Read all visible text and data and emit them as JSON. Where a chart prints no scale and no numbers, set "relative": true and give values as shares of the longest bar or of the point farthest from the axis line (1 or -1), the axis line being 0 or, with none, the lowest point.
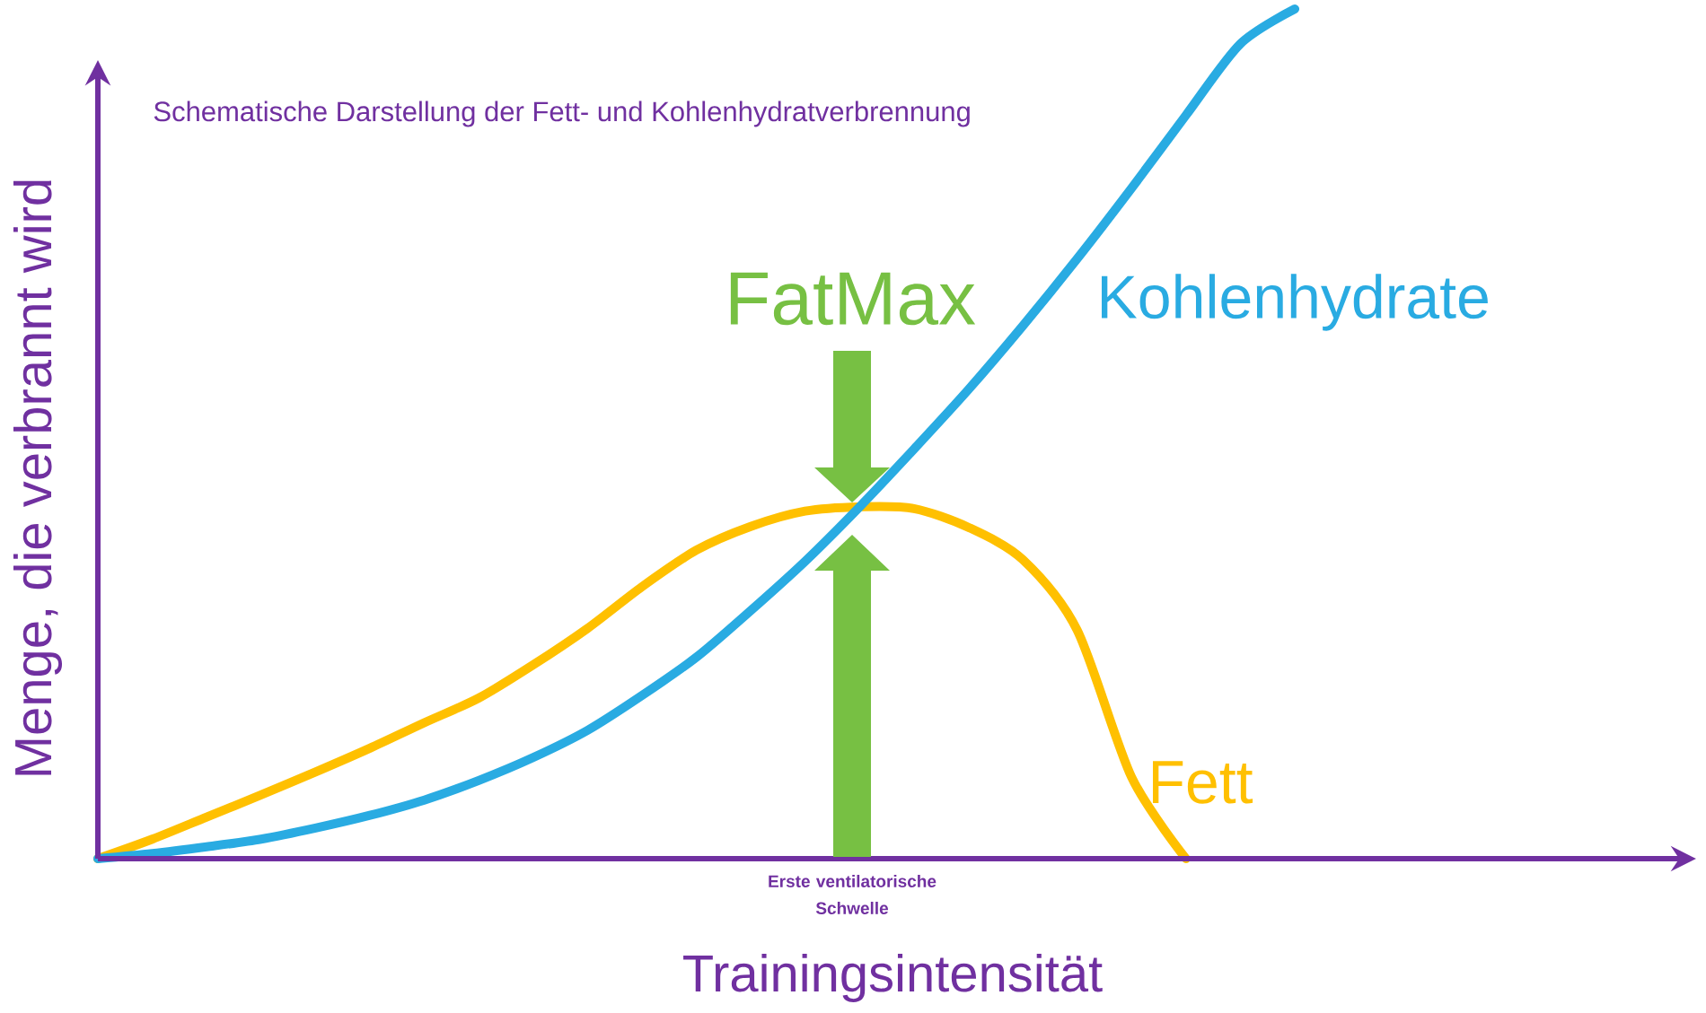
{
  "chart_data": {
    "type": "line",
    "relative": true,
    "title": "Schematische Darstellung der Fett- und Kohlenhydratverbrennung",
    "xlabel": "Trainingsintensität",
    "ylabel": "Menge, die verbrannt wird",
    "annotations": [
      "FatMax",
      "Erste ventilatorische Schwelle"
    ],
    "categories": [
      null,
      null,
      null,
      null,
      null,
      null,
      null,
      null,
      null,
      null,
      null,
      null,
      null,
      null,
      null,
      null,
      null,
      null,
      null,
      null,
      null,
      null,
      null
    ],
    "series": [
      {
        "name": "Fett",
        "color": "#ffc000",
        "values": [
          0,
          0.023,
          0.049,
          0.075,
          0.102,
          0.13,
          0.16,
          0.189,
          0.228,
          0.271,
          0.32,
          0.363,
          0.391,
          0.409,
          0.414,
          0.412,
          0.39,
          0.352,
          0.269,
          0.096,
          0,
          null,
          null
        ]
      },
      {
        "name": "Kohlenhydrate",
        "color": "#29abe2",
        "values": [
          0,
          0.006,
          0.014,
          0.023,
          0.036,
          0.051,
          0.069,
          0.092,
          0.119,
          0.151,
          0.192,
          0.237,
          0.292,
          0.35,
          0.414,
          0.482,
          0.552,
          0.627,
          0.706,
          0.789,
          0.875,
          0.959,
          1
        ]
      }
    ]
  }
}
